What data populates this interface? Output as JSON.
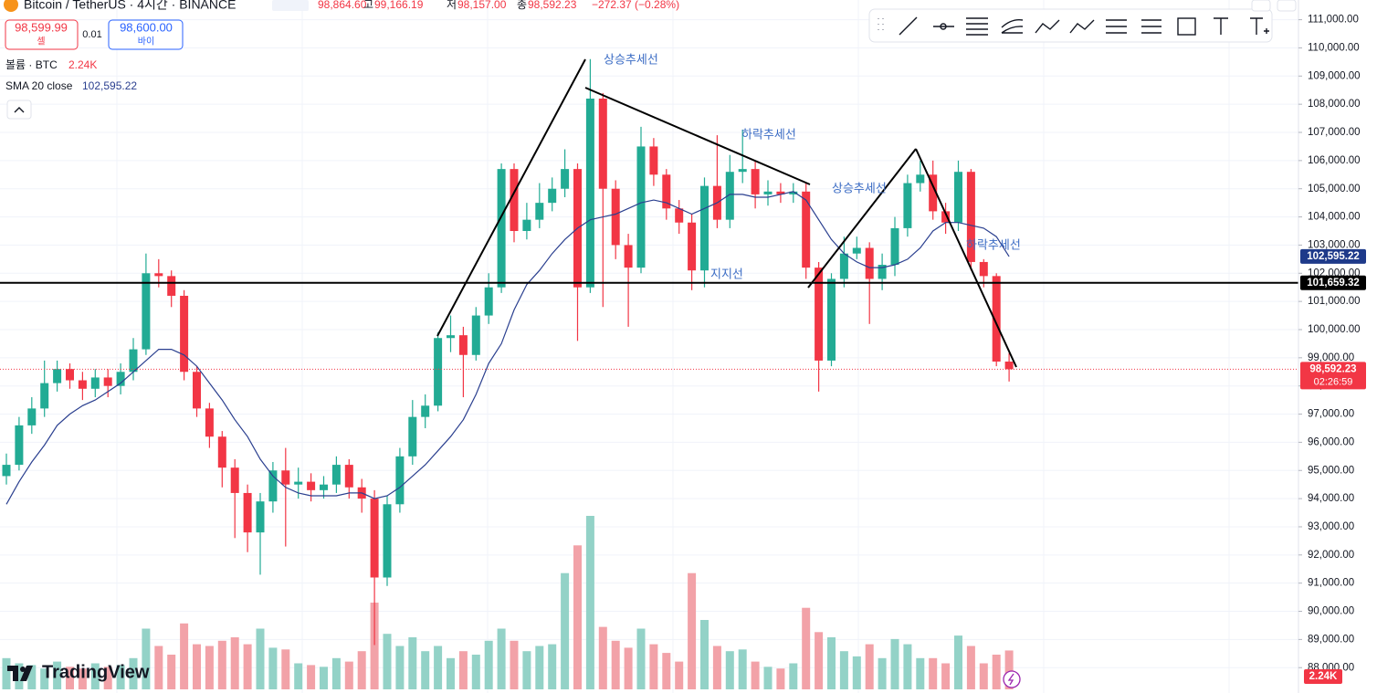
{
  "header": {
    "symbol": "Bitcoin / TetherUS · 4시간 · BINANCE",
    "open": "98,864.60",
    "high_label": "고",
    "high": "99,166.19",
    "low_label": "저",
    "low": "98,157.00",
    "close_label": "종",
    "close": "98,592.23",
    "change": "−272.37 (−0.28%)"
  },
  "trade": {
    "sell_price": "98,599.99",
    "sell_label": "셀",
    "spread": "0.01",
    "buy_price": "98,600.00",
    "buy_label": "바이"
  },
  "indicators": {
    "volume_label": "볼륨 · BTC",
    "volume_value": "2.24K",
    "sma_label": "SMA 20 close",
    "sma_value": "102,595.22"
  },
  "logo": "TradingView",
  "chart_data": {
    "type": "candlestick",
    "up_color": "#22ab94",
    "down_color": "#f23645",
    "volume_up_color": "#93d2c7",
    "volume_down_color": "#f2a2a8",
    "candles": [
      [
        94800,
        95600,
        94500,
        95200
      ],
      [
        95200,
        96900,
        95000,
        96600
      ],
      [
        96600,
        97600,
        96300,
        97200
      ],
      [
        97200,
        98900,
        96900,
        98100
      ],
      [
        98100,
        98900,
        97800,
        98600
      ],
      [
        98600,
        98800,
        97900,
        98200
      ],
      [
        98200,
        98500,
        97500,
        97900
      ],
      [
        97900,
        98600,
        97600,
        98300
      ],
      [
        98300,
        98600,
        97600,
        98000
      ],
      [
        98000,
        98800,
        97700,
        98500
      ],
      [
        98500,
        99700,
        98200,
        99300
      ],
      [
        99300,
        102700,
        99100,
        102000
      ],
      [
        102000,
        102500,
        101500,
        101900
      ],
      [
        101900,
        102100,
        100800,
        101200
      ],
      [
        101200,
        101400,
        98200,
        98500
      ],
      [
        98500,
        98700,
        96900,
        97200
      ],
      [
        97200,
        97400,
        95800,
        96200
      ],
      [
        96200,
        96400,
        94400,
        95100
      ],
      [
        95100,
        95400,
        92600,
        94200
      ],
      [
        94200,
        94500,
        92100,
        92800
      ],
      [
        92800,
        94200,
        91300,
        93900
      ],
      [
        93900,
        95300,
        93500,
        95000
      ],
      [
        95000,
        95800,
        92300,
        94500
      ],
      [
        94500,
        95100,
        94000,
        94600
      ],
      [
        94600,
        94900,
        93900,
        94300
      ],
      [
        94300,
        94800,
        94000,
        94500
      ],
      [
        94500,
        95500,
        94200,
        95200
      ],
      [
        95200,
        95400,
        94000,
        94400
      ],
      [
        94400,
        94700,
        93500,
        94000
      ],
      [
        94000,
        94300,
        88800,
        91200
      ],
      [
        91200,
        94100,
        90900,
        93800
      ],
      [
        93800,
        95800,
        93500,
        95500
      ],
      [
        95500,
        97500,
        95200,
        96900
      ],
      [
        96900,
        97700,
        96500,
        97300
      ],
      [
        97300,
        99900,
        97100,
        99700
      ],
      [
        99700,
        100500,
        99200,
        99800
      ],
      [
        99800,
        100100,
        97600,
        99100
      ],
      [
        99100,
        100800,
        98900,
        100500
      ],
      [
        100500,
        102000,
        100200,
        101500
      ],
      [
        101500,
        105900,
        101300,
        105700
      ],
      [
        105700,
        105900,
        103100,
        103500
      ],
      [
        103500,
        104500,
        103200,
        103900
      ],
      [
        103900,
        105200,
        103600,
        104500
      ],
      [
        104500,
        105400,
        104200,
        105000
      ],
      [
        105000,
        106400,
        104700,
        105700
      ],
      [
        105700,
        105900,
        99600,
        101500
      ],
      [
        101500,
        109600,
        101300,
        108200
      ],
      [
        108200,
        108400,
        100800,
        105000
      ],
      [
        105000,
        105300,
        102500,
        103000
      ],
      [
        103000,
        103400,
        100100,
        102200
      ],
      [
        102200,
        107200,
        102000,
        106500
      ],
      [
        106500,
        106800,
        105100,
        105500
      ],
      [
        105500,
        105700,
        103900,
        104300
      ],
      [
        104300,
        104600,
        103400,
        103800
      ],
      [
        103800,
        104100,
        101400,
        102100
      ],
      [
        102100,
        105400,
        101500,
        105100
      ],
      [
        105100,
        106900,
        103600,
        103900
      ],
      [
        103900,
        106200,
        103600,
        105600
      ],
      [
        105600,
        107100,
        105200,
        105700
      ],
      [
        105700,
        106000,
        104300,
        104800
      ],
      [
        104800,
        105300,
        104400,
        104900
      ],
      [
        104900,
        105200,
        104500,
        104800
      ],
      [
        104800,
        105200,
        104500,
        104900
      ],
      [
        104900,
        105200,
        101800,
        102200
      ],
      [
        102200,
        102400,
        97800,
        98900
      ],
      [
        98900,
        102000,
        98700,
        101800
      ],
      [
        101800,
        103300,
        101500,
        102700
      ],
      [
        102700,
        103300,
        102500,
        102900
      ],
      [
        102900,
        103100,
        100200,
        101800
      ],
      [
        101800,
        102700,
        101400,
        102300
      ],
      [
        102300,
        104000,
        101900,
        103600
      ],
      [
        103600,
        105500,
        103300,
        105200
      ],
      [
        105200,
        106000,
        104900,
        105500
      ],
      [
        105500,
        106000,
        103900,
        104200
      ],
      [
        104200,
        104500,
        103400,
        103800
      ],
      [
        103800,
        106000,
        103500,
        105600
      ],
      [
        105600,
        105700,
        102100,
        102400
      ],
      [
        102400,
        102500,
        101500,
        101900
      ],
      [
        101900,
        102000,
        98700,
        98864.6
      ],
      [
        98864.6,
        99166.19,
        98157,
        98592.23
      ]
    ],
    "volumes": [
      1800,
      1500,
      1400,
      1200,
      1600,
      1300,
      1200,
      1500,
      1300,
      1400,
      1800,
      3500,
      2500,
      2000,
      3800,
      2600,
      2500,
      2800,
      3000,
      2600,
      3500,
      2400,
      2300,
      1500,
      1400,
      1300,
      1800,
      1600,
      2200,
      5000,
      3200,
      2500,
      3000,
      2200,
      2500,
      1800,
      2200,
      2000,
      2800,
      3500,
      2800,
      2200,
      2500,
      2600,
      6700,
      8300,
      10000,
      3600,
      2800,
      2400,
      3500,
      2600,
      2100,
      1600,
      6700,
      4000,
      2500,
      2200,
      2300,
      1600,
      1300,
      1200,
      1500,
      4700,
      3300,
      3000,
      2200,
      1900,
      2600,
      1800,
      2900,
      2600,
      1800,
      1800,
      1500,
      3100,
      2500,
      1500,
      2000,
      2240
    ],
    "sma": {
      "name": "SMA 20 close",
      "color": "#2a3f8f",
      "values": [
        93800,
        94600,
        95300,
        95900,
        96600,
        97000,
        97300,
        97500,
        97800,
        98100,
        98500,
        98900,
        99300,
        99300,
        99100,
        98700,
        98100,
        97500,
        96800,
        96200,
        95400,
        94800,
        94400,
        94200,
        94100,
        94100,
        94100,
        94200,
        94200,
        94000,
        94100,
        94400,
        94800,
        95200,
        95700,
        96200,
        96800,
        97700,
        98800,
        99500,
        100700,
        101600,
        102100,
        102700,
        103200,
        103600,
        103900,
        104000,
        104100,
        104300,
        104500,
        104600,
        104500,
        104300,
        104100,
        104300,
        104500,
        104800,
        104800,
        104700,
        104700,
        104800,
        104900,
        104600,
        103900,
        103200,
        102700,
        102400,
        102200,
        102200,
        102300,
        102500,
        102900,
        103500,
        103800,
        103800,
        103700,
        103600,
        103300,
        102595.22
      ]
    },
    "ylim": [
      87100,
      111700
    ],
    "yticks": [
      {
        "value": 88000,
        "label": "88,000.00"
      },
      {
        "value": 89000,
        "label": "89,000.00"
      },
      {
        "value": 90000,
        "label": "90,000.00"
      },
      {
        "value": 91000,
        "label": "91,000.00"
      },
      {
        "value": 92000,
        "label": "92,000.00"
      },
      {
        "value": 93000,
        "label": "93,000.00"
      },
      {
        "value": 94000,
        "label": "94,000.00"
      },
      {
        "value": 95000,
        "label": "95,000.00"
      },
      {
        "value": 96000,
        "label": "96,000.00"
      },
      {
        "value": 97000,
        "label": "97,000.00"
      },
      {
        "value": 98000,
        "label": "98,000.00"
      },
      {
        "value": 99000,
        "label": "99,000.00"
      },
      {
        "value": 100000,
        "label": "100,000.00"
      },
      {
        "value": 101000,
        "label": "101,000.00"
      },
      {
        "value": 102000,
        "label": "102,000.00"
      },
      {
        "value": 103000,
        "label": "103,000.00"
      },
      {
        "value": 104000,
        "label": "104,000.00"
      },
      {
        "value": 105000,
        "label": "105,000.00"
      },
      {
        "value": 106000,
        "label": "106,000.00"
      },
      {
        "value": 107000,
        "label": "107,000.00"
      },
      {
        "value": 108000,
        "label": "108,000.00"
      },
      {
        "value": 109000,
        "label": "109,000.00"
      },
      {
        "value": 110000,
        "label": "110,000.00"
      },
      {
        "value": 111000,
        "label": "111,000.00"
      }
    ],
    "grid": true,
    "horizontal_line": {
      "value": 101659.32,
      "label": "101,659.32"
    },
    "sma_badge": {
      "value": 102595.22,
      "label": "102,595.22"
    },
    "last_price": {
      "value": 98592.23,
      "label": "98,592.23",
      "countdown": "02:26:59"
    },
    "volume_badge": "2.24K",
    "annotations": [
      "상승추세선",
      "하락추세선",
      "상승추세선",
      "하락추세선",
      "지지선"
    ]
  }
}
